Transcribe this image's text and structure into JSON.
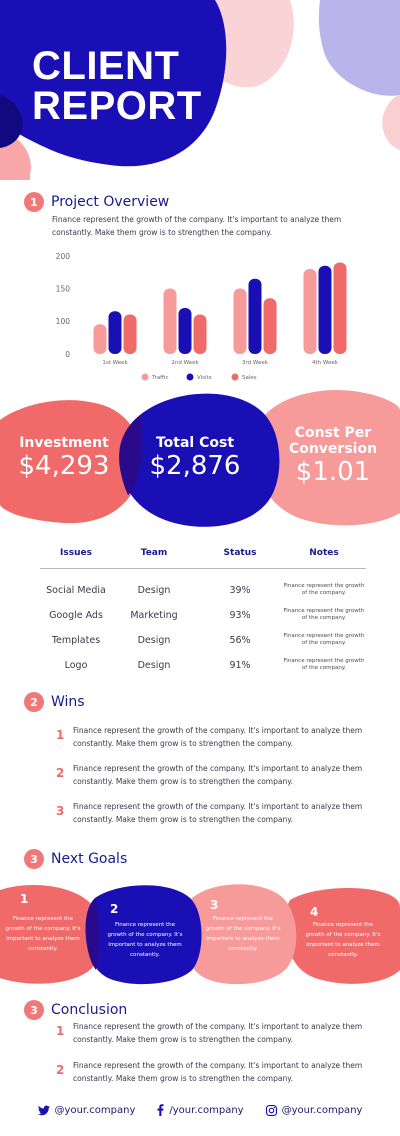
{
  "title": {
    "line1": "CLIENT",
    "line2": "REPORT"
  },
  "colors": {
    "navy": "#1a0fb5",
    "coral": "#f06a6a",
    "pink": "#f79a9a",
    "lightpink": "#f9cfd1",
    "lavender": "#b9b5ec"
  },
  "overview": {
    "num": "1",
    "title": "Project Overview",
    "text": "Finance represent the growth of the company. It's important to analyze them constantly. Make them grow is to strengthen the company."
  },
  "chart_data": {
    "type": "bar",
    "categories": [
      "1st Week",
      "2nd Week",
      "3rd Week",
      "4th Week"
    ],
    "series": [
      {
        "name": "Traffic",
        "color": "#f79a9a",
        "values": [
          90,
          150,
          150,
          180
        ]
      },
      {
        "name": "Visits",
        "color": "#1a0fb5",
        "values": [
          115,
          120,
          165,
          185
        ]
      },
      {
        "name": "Sales",
        "color": "#f06a6a",
        "values": [
          110,
          110,
          135,
          190
        ]
      }
    ],
    "yticks": [
      "0",
      "100",
      "150",
      "200"
    ],
    "ylim": [
      0,
      200
    ],
    "legend": "bottom",
    "grid": false
  },
  "stats": [
    {
      "label": "Investment",
      "value": "$4,293"
    },
    {
      "label": "Total Cost",
      "value": "$2,876"
    },
    {
      "label_line1": "Const Per",
      "label_line2": "Conversion",
      "value": "$1.01"
    }
  ],
  "table": {
    "headers": [
      "Issues",
      "Team",
      "Status",
      "Notes"
    ],
    "rows": [
      {
        "issue": "Social Media",
        "team": "Design",
        "status": "39%",
        "note": "Finance represent the growth of the company."
      },
      {
        "issue": "Google Ads",
        "team": "Marketing",
        "status": "93%",
        "note": "Finance represent the growth of the company."
      },
      {
        "issue": "Templates",
        "team": "Design",
        "status": "56%",
        "note": "Finance represent the growth of the company."
      },
      {
        "issue": "Logo",
        "team": "Design",
        "status": "91%",
        "note": "Finance represent the growth of the company."
      }
    ]
  },
  "wins": {
    "num": "2",
    "title": "Wins",
    "items": [
      {
        "num": "1",
        "text": "Finance represent the growth of the company. It's important to analyze them constantly. Make them grow is to strengthen the company."
      },
      {
        "num": "2",
        "text": "Finance represent the growth of the company. It's important to analyze them constantly. Make them grow is to strengthen the company."
      },
      {
        "num": "3",
        "text": "Finance represent the growth of the company. It's important to analyze them constantly. Make them grow is to strengthen the company."
      }
    ]
  },
  "goals": {
    "num": "3",
    "title": "Next Goals",
    "items": [
      {
        "num": "1",
        "text": "Finance represent the growth of the company. It's important to analyze them constantly."
      },
      {
        "num": "2",
        "text": "Finance represent the growth of the company. It's important to analyze them constantly."
      },
      {
        "num": "3",
        "text": "Finance represent the growth of the company. It's important to analyze them constantly."
      },
      {
        "num": "4",
        "text": "Finance represent the growth of the company. It's important to analyze them constantly."
      }
    ]
  },
  "conclusion": {
    "num": "3",
    "title": "Conclusion",
    "items": [
      {
        "num": "1",
        "text": "Finance represent the growth of the company. It's important to analyze them constantly. Make them grow is to strengthen the company."
      },
      {
        "num": "2",
        "text": "Finance represent the growth of the company. It's important to analyze them constantly. Make them grow is to strengthen the company."
      }
    ]
  },
  "footer": {
    "twitter": "@your.company",
    "facebook": "/your.company",
    "instagram": "@your.company"
  }
}
